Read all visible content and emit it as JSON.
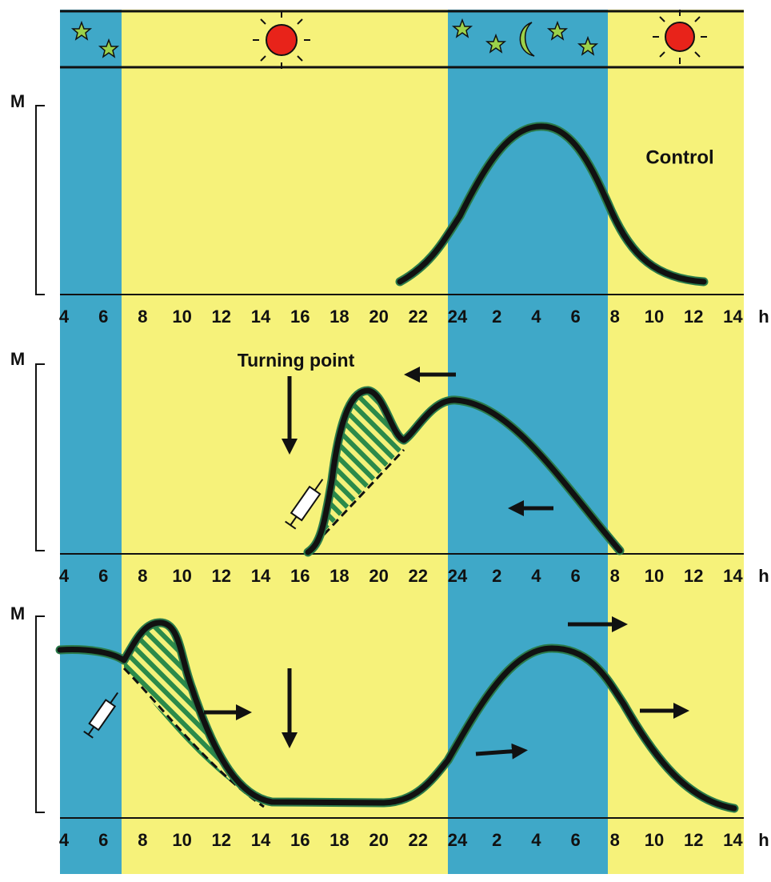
{
  "panels": [
    {
      "y_label": "M",
      "annotation": "Control",
      "axis_labels": [
        "4",
        "6",
        "8",
        "10",
        "12",
        "14",
        "16",
        "18",
        "20",
        "22",
        "24",
        "2",
        "4",
        "6",
        "8",
        "10",
        "12",
        "14"
      ],
      "axis_unit": "h"
    },
    {
      "y_label": "M",
      "annotation": "Turning point",
      "axis_labels": [
        "4",
        "6",
        "8",
        "10",
        "12",
        "14",
        "16",
        "18",
        "20",
        "22",
        "24",
        "2",
        "4",
        "6",
        "8",
        "10",
        "12",
        "14"
      ],
      "axis_unit": "h"
    },
    {
      "y_label": "M",
      "axis_labels": [
        "4",
        "6",
        "8",
        "10",
        "12",
        "14",
        "16",
        "18",
        "20",
        "22",
        "24",
        "2",
        "4",
        "6",
        "8",
        "10",
        "12",
        "14"
      ],
      "axis_unit": "h"
    }
  ]
}
